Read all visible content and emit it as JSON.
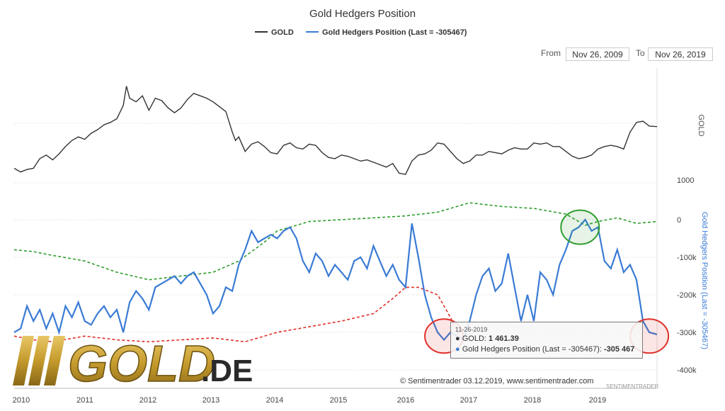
{
  "chart_data": {
    "type": "line",
    "title": "Gold Hedgers Position",
    "legend": {
      "items": [
        {
          "label": "GOLD",
          "color": "#333333"
        },
        {
          "label": "Gold Hedgers Position (Last = -305467)",
          "color": "#3a7bd5"
        }
      ],
      "placement": "top-center"
    },
    "x_ticks": [
      "2010",
      "2011",
      "2012",
      "2013",
      "2014",
      "2015",
      "2016",
      "2017",
      "2018",
      "2019"
    ],
    "xlim": [
      2009.9,
      2019.92
    ],
    "gold_axis": {
      "title": "GOLD",
      "tick_label": "1000",
      "ylim": [
        1000,
        1950
      ],
      "grid": true
    },
    "hedgers_axis": {
      "title": "Gold Hedgers Position (Last = -305467)",
      "ticks": [
        "0",
        "-100k",
        "-200k",
        "-300k",
        "-400k"
      ],
      "ylim": [
        -410000,
        20000
      ],
      "grid": true
    },
    "series": [
      {
        "name": "GOLD",
        "color": "#333333",
        "style": "solid",
        "x": [
          2009.9,
          2010.0,
          2010.1,
          2010.2,
          2010.3,
          2010.4,
          2010.5,
          2010.6,
          2010.7,
          2010.8,
          2010.9,
          2011.0,
          2011.1,
          2011.2,
          2011.3,
          2011.4,
          2011.5,
          2011.6,
          2011.65,
          2011.7,
          2011.8,
          2011.9,
          2012.0,
          2012.1,
          2012.2,
          2012.3,
          2012.4,
          2012.5,
          2012.6,
          2012.7,
          2012.8,
          2012.9,
          2013.0,
          2013.1,
          2013.2,
          2013.3,
          2013.35,
          2013.4,
          2013.5,
          2013.6,
          2013.7,
          2013.8,
          2013.9,
          2014.0,
          2014.1,
          2014.2,
          2014.3,
          2014.4,
          2014.5,
          2014.6,
          2014.7,
          2014.8,
          2014.9,
          2015.0,
          2015.1,
          2015.2,
          2015.3,
          2015.4,
          2015.5,
          2015.6,
          2015.7,
          2015.8,
          2015.9,
          2016.0,
          2016.1,
          2016.2,
          2016.3,
          2016.4,
          2016.5,
          2016.6,
          2016.7,
          2016.8,
          2016.9,
          2017.0,
          2017.1,
          2017.2,
          2017.3,
          2017.4,
          2017.5,
          2017.6,
          2017.7,
          2017.8,
          2017.9,
          2018.0,
          2018.1,
          2018.2,
          2018.3,
          2018.4,
          2018.5,
          2018.6,
          2018.7,
          2018.8,
          2018.9,
          2019.0,
          2019.1,
          2019.2,
          2019.3,
          2019.4,
          2019.5,
          2019.6,
          2019.7,
          2019.8,
          2019.92
        ],
        "values": [
          1120,
          1090,
          1110,
          1120,
          1200,
          1230,
          1190,
          1240,
          1300,
          1350,
          1380,
          1360,
          1410,
          1440,
          1480,
          1500,
          1530,
          1640,
          1800,
          1700,
          1670,
          1720,
          1600,
          1700,
          1680,
          1620,
          1580,
          1620,
          1690,
          1740,
          1720,
          1700,
          1670,
          1630,
          1590,
          1420,
          1350,
          1380,
          1260,
          1320,
          1340,
          1300,
          1250,
          1240,
          1310,
          1330,
          1290,
          1280,
          1320,
          1310,
          1250,
          1210,
          1200,
          1230,
          1220,
          1200,
          1180,
          1190,
          1170,
          1150,
          1130,
          1160,
          1080,
          1070,
          1180,
          1230,
          1240,
          1270,
          1330,
          1320,
          1260,
          1200,
          1160,
          1180,
          1230,
          1230,
          1260,
          1250,
          1240,
          1270,
          1290,
          1280,
          1280,
          1330,
          1320,
          1330,
          1300,
          1300,
          1260,
          1220,
          1200,
          1210,
          1230,
          1280,
          1300,
          1310,
          1300,
          1280,
          1420,
          1500,
          1510,
          1470,
          1465
        ]
      },
      {
        "name": "Gold Hedgers Position (Last = -305467)",
        "color": "#3a7bd5",
        "style": "solid",
        "x": [
          2009.9,
          2010.0,
          2010.1,
          2010.2,
          2010.3,
          2010.4,
          2010.5,
          2010.6,
          2010.7,
          2010.8,
          2010.9,
          2011.0,
          2011.1,
          2011.2,
          2011.3,
          2011.4,
          2011.5,
          2011.6,
          2011.7,
          2011.8,
          2011.9,
          2012.0,
          2012.1,
          2012.2,
          2012.3,
          2012.4,
          2012.5,
          2012.6,
          2012.7,
          2012.8,
          2012.9,
          2013.0,
          2013.1,
          2013.2,
          2013.3,
          2013.4,
          2013.5,
          2013.6,
          2013.7,
          2013.8,
          2013.9,
          2014.0,
          2014.1,
          2014.2,
          2014.3,
          2014.4,
          2014.5,
          2014.6,
          2014.7,
          2014.8,
          2014.9,
          2015.0,
          2015.1,
          2015.2,
          2015.3,
          2015.4,
          2015.5,
          2015.6,
          2015.7,
          2015.8,
          2015.9,
          2016.0,
          2016.1,
          2016.2,
          2016.3,
          2016.4,
          2016.5,
          2016.6,
          2016.7,
          2016.8,
          2016.9,
          2017.0,
          2017.1,
          2017.2,
          2017.3,
          2017.4,
          2017.5,
          2017.6,
          2017.7,
          2017.8,
          2017.9,
          2018.0,
          2018.1,
          2018.2,
          2018.3,
          2018.4,
          2018.5,
          2018.6,
          2018.7,
          2018.8,
          2018.9,
          2019.0,
          2019.1,
          2019.2,
          2019.3,
          2019.4,
          2019.5,
          2019.6,
          2019.7,
          2019.8,
          2019.92
        ],
        "values": [
          -300000,
          -290000,
          -230000,
          -270000,
          -240000,
          -290000,
          -250000,
          -300000,
          -230000,
          -260000,
          -220000,
          -270000,
          -280000,
          -250000,
          -230000,
          -260000,
          -240000,
          -300000,
          -220000,
          -190000,
          -210000,
          -240000,
          -180000,
          -170000,
          -160000,
          -150000,
          -170000,
          -150000,
          -140000,
          -170000,
          -200000,
          -250000,
          -230000,
          -180000,
          -190000,
          -120000,
          -80000,
          -30000,
          -60000,
          -50000,
          -40000,
          -50000,
          -30000,
          -20000,
          -50000,
          -110000,
          -140000,
          -90000,
          -110000,
          -150000,
          -120000,
          -140000,
          -160000,
          -110000,
          -100000,
          -130000,
          -70000,
          -110000,
          -150000,
          -120000,
          -160000,
          -180000,
          -10000,
          -100000,
          -200000,
          -260000,
          -300000,
          -320000,
          -300000,
          -310000,
          -320000,
          -270000,
          -200000,
          -150000,
          -130000,
          -190000,
          -170000,
          -90000,
          -180000,
          -270000,
          -200000,
          -270000,
          -140000,
          -160000,
          -200000,
          -120000,
          -80000,
          -30000,
          -20000,
          0,
          -30000,
          -20000,
          -110000,
          -130000,
          -80000,
          -140000,
          -120000,
          -160000,
          -270000,
          -300000,
          -305467
        ]
      },
      {
        "name": "",
        "color": "#2e9e2e",
        "style": "dashed",
        "x": [
          2009.9,
          2010.2,
          2010.5,
          2011.0,
          2011.5,
          2012.0,
          2012.5,
          2013.0,
          2013.4,
          2013.8,
          2014.0,
          2014.5,
          2015.0,
          2015.5,
          2016.0,
          2016.5,
          2017.0,
          2017.5,
          2018.0,
          2018.5,
          2018.8,
          2019.0,
          2019.3,
          2019.6,
          2019.92
        ],
        "values": [
          -80000,
          -85000,
          -95000,
          -110000,
          -140000,
          -160000,
          -150000,
          -140000,
          -110000,
          -60000,
          -30000,
          -5000,
          0,
          5000,
          10000,
          20000,
          45000,
          35000,
          30000,
          15000,
          -15000,
          -5000,
          5000,
          -10000,
          -5000
        ]
      },
      {
        "name": "",
        "color": "#e0302a",
        "style": "dashed",
        "x": [
          2009.9,
          2010.2,
          2010.5,
          2011.0,
          2011.5,
          2012.0,
          2012.5,
          2013.0,
          2013.5,
          2014.0,
          2014.5,
          2015.0,
          2015.5,
          2015.8,
          2016.0,
          2016.2,
          2016.5,
          2016.7,
          2016.9
        ],
        "values": [
          -310000,
          -320000,
          -325000,
          -310000,
          -320000,
          -325000,
          -320000,
          -315000,
          -325000,
          -300000,
          -285000,
          -270000,
          -250000,
          -210000,
          -180000,
          -180000,
          -200000,
          -260000,
          -330000
        ]
      }
    ],
    "annotations": [
      {
        "type": "circle",
        "color": "#2e9e2e",
        "x": 2018.72,
        "y": -20000
      },
      {
        "type": "circle",
        "color": "#e0302a",
        "x": 2016.6,
        "y": -310000
      },
      {
        "type": "circle",
        "color": "#e0302a",
        "x": 2019.8,
        "y": -310000
      }
    ]
  },
  "range": {
    "from_label": "From",
    "from_value": "Nov 26, 2009",
    "to_label": "To",
    "to_value": "Nov 26, 2019"
  },
  "tooltip": {
    "date": "11-26-2019",
    "gold_label": "GOLD:",
    "gold_value": "1 461.39",
    "hedgers_label": "Gold Hedgers Position (Last = -305467):",
    "hedgers_value": "-305 467"
  },
  "credit": "© Sentimentrader 03.12.2019, www.sentimentrader.com",
  "watermark": "SENTIMENTRADER",
  "logo": {
    "text_main": "GOLD",
    "text_suffix": ".DE",
    "gold_color": "#c9a13a",
    "dark_color": "#2a2a2a"
  }
}
